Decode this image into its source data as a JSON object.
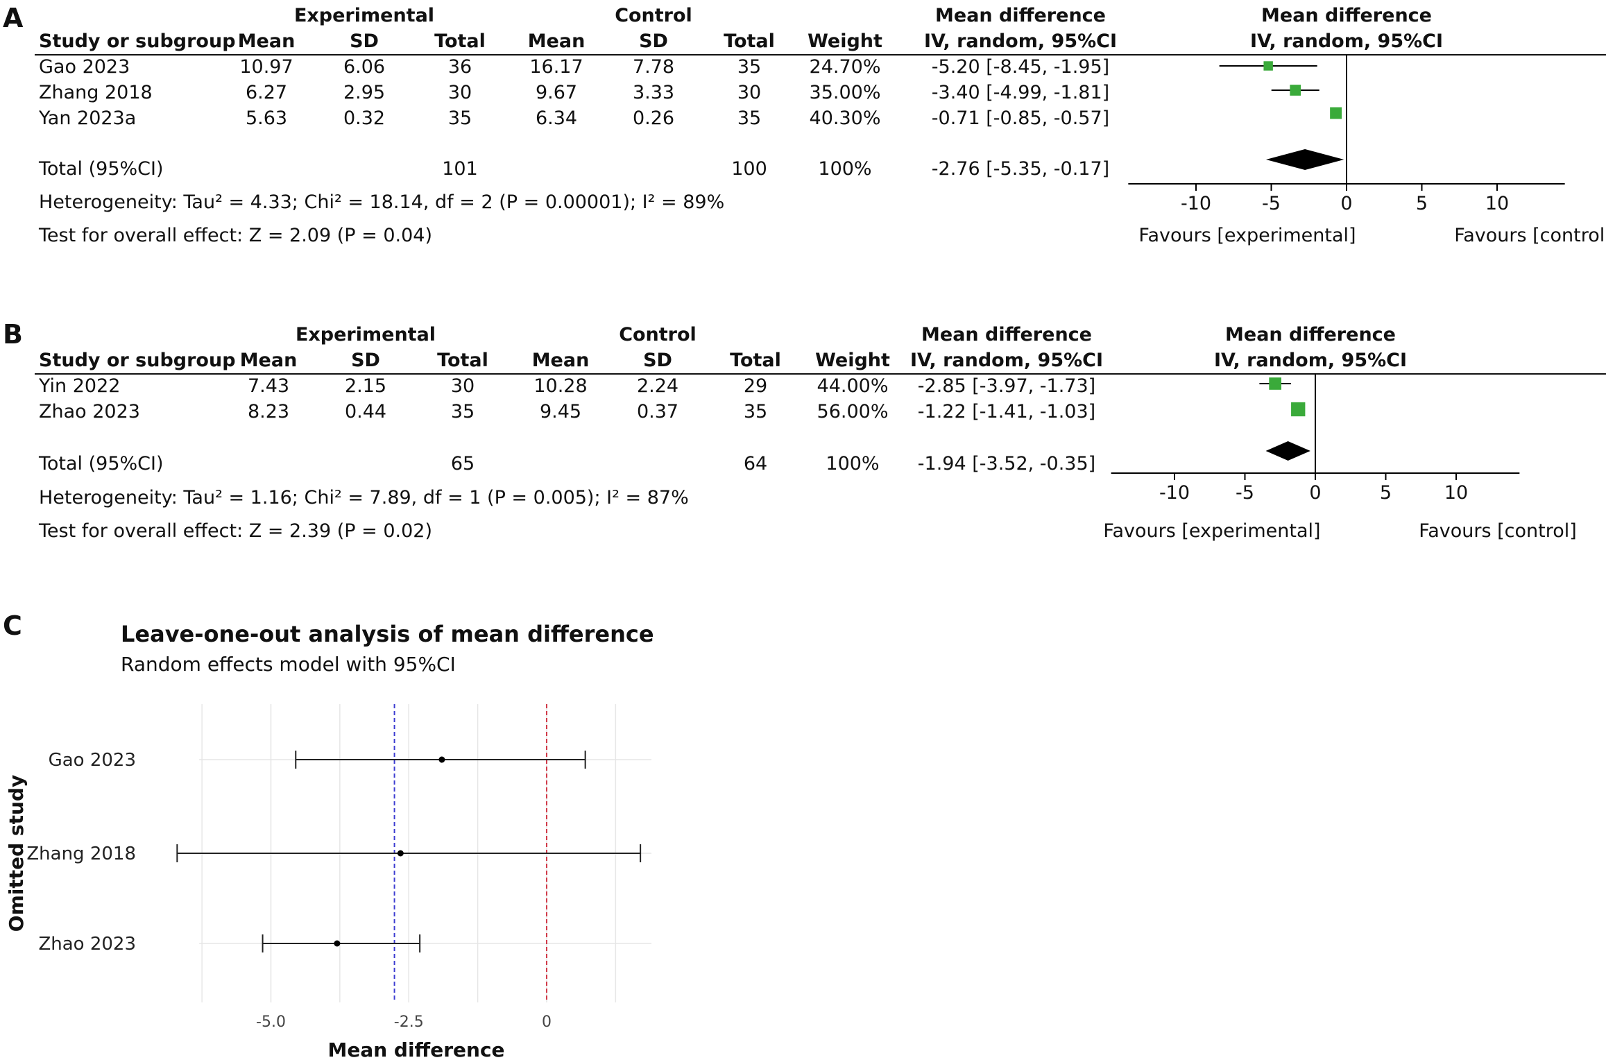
{
  "chart_data": [
    {
      "type": "forest",
      "panel": "A",
      "columns": {
        "study": "Study or subgroup",
        "group1": "Experimental",
        "group2": "Control",
        "mean": "Mean",
        "sd": "SD",
        "total": "Total",
        "weight": "Weight",
        "md_title": "Mean difference",
        "md_sub": "IV, random, 95%CI",
        "plot_title": "Mean difference",
        "plot_sub": "IV, random, 95%CI"
      },
      "rows": [
        {
          "study": "Gao 2023",
          "e_mean": "10.97",
          "e_sd": "6.06",
          "e_total": "36",
          "c_mean": "16.17",
          "c_sd": "7.78",
          "c_total": "35",
          "weight": "24.70%",
          "ci_text": "-5.20 [-8.45, -1.95]",
          "md": -5.2,
          "lo": -8.45,
          "hi": -1.95,
          "w": 24.7
        },
        {
          "study": "Zhang 2018",
          "e_mean": "6.27",
          "e_sd": "2.95",
          "e_total": "30",
          "c_mean": "9.67",
          "c_sd": "3.33",
          "c_total": "30",
          "weight": "35.00%",
          "ci_text": "-3.40 [-4.99, -1.81]",
          "md": -3.4,
          "lo": -4.99,
          "hi": -1.81,
          "w": 35.0
        },
        {
          "study": "Yan 2023a",
          "e_mean": "5.63",
          "e_sd": "0.32",
          "e_total": "35",
          "c_mean": "6.34",
          "c_sd": "0.26",
          "c_total": "35",
          "weight": "40.30%",
          "ci_text": "-0.71 [-0.85, -0.57]",
          "md": -0.71,
          "lo": -0.85,
          "hi": -0.57,
          "w": 40.3
        }
      ],
      "total": {
        "label": "Total (95%CI)",
        "e_total": "101",
        "c_total": "100",
        "weight": "100%",
        "ci_text": "-2.76 [-5.35, -0.17]",
        "md": -2.76,
        "lo": -5.35,
        "hi": -0.17
      },
      "heterogeneity": "Heterogeneity: Tau² = 4.33; Chi² = 18.14, df = 2 (P = 0.00001); I² = 89%",
      "overall": "Test for overall effect: Z = 2.09 (P = 0.04)",
      "axis": {
        "ticks": [
          -10,
          -5,
          0,
          5,
          10
        ],
        "tick_labels": [
          "-10",
          "-5",
          "0",
          "5",
          "10"
        ],
        "xlim": [
          -14.5,
          14.5
        ]
      },
      "favours_left": "Favours [experimental]",
      "favours_right": "Favours [control]"
    },
    {
      "type": "forest",
      "panel": "B",
      "columns": {
        "study": "Study or subgroup",
        "group1": "Experimental",
        "group2": "Control",
        "mean": "Mean",
        "sd": "SD",
        "total": "Total",
        "weight": "Weight",
        "md_title": "Mean difference",
        "md_sub": "IV, random, 95%CI",
        "plot_title": "Mean difference",
        "plot_sub": "IV, random, 95%CI"
      },
      "rows": [
        {
          "study": "Yin 2022",
          "e_mean": "7.43",
          "e_sd": "2.15",
          "e_total": "30",
          "c_mean": "10.28",
          "c_sd": "2.24",
          "c_total": "29",
          "weight": "44.00%",
          "ci_text": "-2.85 [-3.97, -1.73]",
          "md": -2.85,
          "lo": -3.97,
          "hi": -1.73,
          "w": 44.0
        },
        {
          "study": "Zhao 2023",
          "e_mean": "8.23",
          "e_sd": "0.44",
          "e_total": "35",
          "c_mean": "9.45",
          "c_sd": "0.37",
          "c_total": "35",
          "weight": "56.00%",
          "ci_text": "-1.22 [-1.41, -1.03]",
          "md": -1.22,
          "lo": -1.41,
          "hi": -1.03,
          "w": 56.0
        }
      ],
      "total": {
        "label": "Total (95%CI)",
        "e_total": "65",
        "c_total": "64",
        "weight": "100%",
        "ci_text": "-1.94 [-3.52, -0.35]",
        "md": -1.94,
        "lo": -3.52,
        "hi": -0.35
      },
      "heterogeneity": "Heterogeneity: Tau² = 1.16; Chi² = 7.89, df = 1 (P = 0.005); I² = 87%",
      "overall": "Test for overall effect: Z = 2.39 (P = 0.02)",
      "axis": {
        "ticks": [
          -10,
          -5,
          0,
          5,
          10
        ],
        "tick_labels": [
          "-10",
          "-5",
          "0",
          "5",
          "10"
        ],
        "xlim": [
          -14.5,
          14.5
        ]
      },
      "favours_left": "Favours [experimental]",
      "favours_right": "Favours [control]"
    },
    {
      "type": "leave-one-out",
      "panel": "C",
      "title": "Leave-one-out analysis of mean difference",
      "subtitle": "Random effects model with 95%CI",
      "xlabel": "Mean difference",
      "ylabel": "Omitted study",
      "xlim": [
        -6.3,
        1.9
      ],
      "ticks": [
        -5.0,
        -2.5,
        0
      ],
      "tick_labels": [
        "-5.0",
        "-2.5",
        "0"
      ],
      "pooled_line": -2.76,
      "null_line": 0,
      "rows": [
        {
          "study": "Gao 2023",
          "md": -1.9,
          "lo": -4.55,
          "hi": 0.7
        },
        {
          "study": "Zhang 2018",
          "md": -2.65,
          "lo": -6.7,
          "hi": 1.7
        },
        {
          "study": "Zhao 2023",
          "md": -3.8,
          "lo": -5.15,
          "hi": -2.3
        }
      ]
    }
  ],
  "labels": {
    "a": "A",
    "b": "B",
    "c": "C"
  },
  "colors": {
    "marker": "#3aaa3a",
    "diamond": "#000000",
    "pooled_line": "#3b3bd1",
    "null_line": "#d13b4a",
    "grid": "#e6e6e6"
  }
}
